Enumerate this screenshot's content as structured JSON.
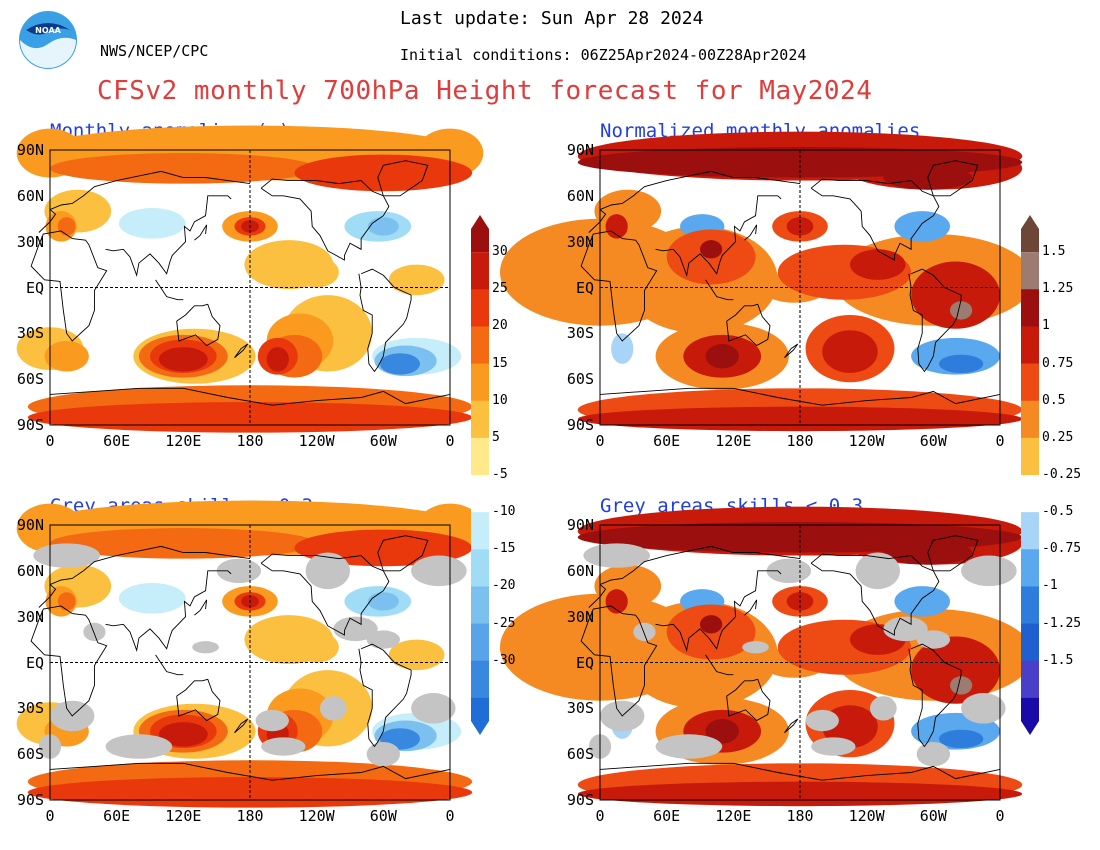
{
  "header": {
    "last_update": "Last update: Sun Apr 28 2024",
    "agency": "NWS/NCEP/CPC",
    "initial_conditions": "Initial conditions: 06Z25Apr2024-00Z28Apr2024",
    "title": "CFSv2 monthly 700hPa Height forecast for May2024",
    "logo_text": "NOAA"
  },
  "panels": [
    {
      "id": "tl",
      "title": "Monthly anomalies (m)",
      "grey_skill_mask": false,
      "variant": "abs"
    },
    {
      "id": "tr",
      "title": "Normalized monthly anomalies",
      "grey_skill_mask": false,
      "variant": "norm"
    },
    {
      "id": "bl",
      "title": "Grey areas skills < 0.3",
      "grey_skill_mask": true,
      "variant": "abs"
    },
    {
      "id": "br",
      "title": "Grey areas skills < 0.3",
      "grey_skill_mask": true,
      "variant": "norm"
    }
  ],
  "axes": {
    "lat_labels": [
      "90N",
      "60N",
      "30N",
      "EQ",
      "30S",
      "60S",
      "90S"
    ],
    "lon_labels": [
      "0",
      "60E",
      "120E",
      "180",
      "120W",
      "60W",
      "0"
    ]
  },
  "colorbar_left": {
    "units": "m",
    "labels": [
      "30",
      "25",
      "20",
      "15",
      "10",
      "5",
      "-5",
      "-10",
      "-15",
      "-20",
      "-25",
      "-30"
    ],
    "colors": [
      "#9b0f0f",
      "#c81a0a",
      "#e8380c",
      "#f36a12",
      "#fa9a1e",
      "#fcc040",
      "#ffe98a",
      "#ffffff",
      "#c5eefa",
      "#a0dcf5",
      "#7cc0ef",
      "#58a4ea",
      "#3988e0",
      "#1f6dd6"
    ]
  },
  "colorbar_right": {
    "labels": [
      "1.5",
      "1.25",
      "1",
      "0.75",
      "0.5",
      "0.25",
      "-0.25",
      "-0.5",
      "-0.75",
      "-1",
      "-1.25",
      "-1.5"
    ],
    "colors": [
      "#6e4637",
      "#9c7c71",
      "#9b0f0f",
      "#c81a0a",
      "#ee4a14",
      "#f58a22",
      "#fcc040",
      "#ffffff",
      "#a8d4f7",
      "#5aa8ee",
      "#2e7ddc",
      "#1f5fcf",
      "#4a3fc8",
      "#1a0aa8"
    ]
  },
  "colors": {
    "title": "#e03c3c",
    "panel_title": "#1f3fe0",
    "grey_mask": "#c4c4c4"
  }
}
